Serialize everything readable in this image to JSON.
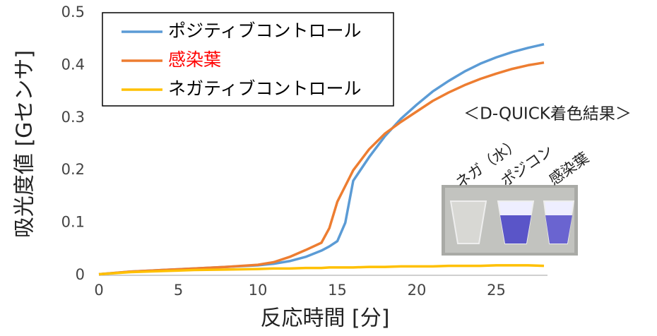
{
  "chart_data": {
    "type": "line",
    "x_label": "反応時間 [分]",
    "y_label": "吸光度値 [Gセンサ]",
    "x": [
      0,
      2,
      4,
      6,
      8,
      10,
      11,
      12,
      13,
      14,
      14.5,
      15,
      15.5,
      16,
      17,
      18,
      19,
      20,
      21,
      22,
      23,
      24,
      25,
      26,
      27,
      28
    ],
    "series": [
      {
        "name": "ポジティブコントロール",
        "color": "#5b9bd5",
        "label_color": "#000000",
        "values": [
          0.002,
          0.007,
          0.01,
          0.013,
          0.016,
          0.019,
          0.022,
          0.027,
          0.035,
          0.047,
          0.055,
          0.065,
          0.1,
          0.18,
          0.225,
          0.265,
          0.298,
          0.325,
          0.35,
          0.37,
          0.388,
          0.403,
          0.415,
          0.425,
          0.433,
          0.44
        ]
      },
      {
        "name": "感染葉",
        "color": "#ed7d31",
        "label_color": "#ff0000",
        "values": [
          0.002,
          0.007,
          0.01,
          0.013,
          0.016,
          0.02,
          0.025,
          0.035,
          0.048,
          0.062,
          0.09,
          0.14,
          0.17,
          0.2,
          0.24,
          0.27,
          0.292,
          0.312,
          0.332,
          0.348,
          0.362,
          0.374,
          0.384,
          0.393,
          0.4,
          0.405
        ]
      },
      {
        "name": "ネガティブコントロール",
        "color": "#ffc000",
        "label_color": "#000000",
        "values": [
          0.002,
          0.006,
          0.008,
          0.01,
          0.011,
          0.012,
          0.013,
          0.013,
          0.014,
          0.014,
          0.015,
          0.015,
          0.015,
          0.015,
          0.016,
          0.016,
          0.017,
          0.017,
          0.017,
          0.018,
          0.018,
          0.018,
          0.019,
          0.019,
          0.019,
          0.018
        ]
      }
    ],
    "xlim": [
      0,
      28
    ],
    "xticks": [
      0,
      5,
      10,
      15,
      20,
      25
    ],
    "ylim": [
      0,
      0.5
    ],
    "yticks": [
      0,
      0.1,
      0.2,
      0.3,
      0.4,
      0.5
    ],
    "grid": false,
    "legend": "top-left",
    "annotation": "＜D-QUICK着色結果＞",
    "image_labels": [
      "ネガ（水）",
      "ポジコン",
      "感染葉"
    ]
  }
}
